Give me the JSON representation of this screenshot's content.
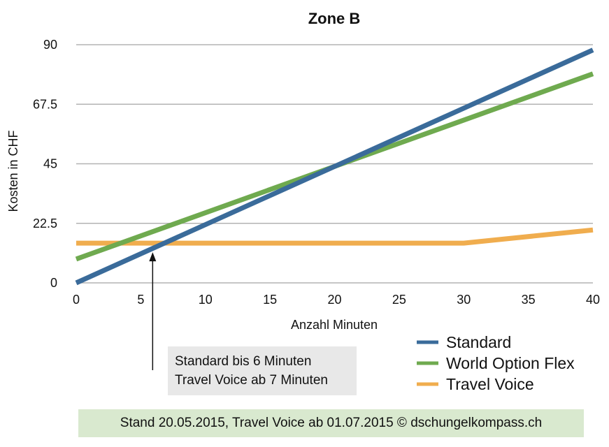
{
  "chart_data": {
    "type": "line",
    "title": "Zone B",
    "xlabel": "Anzahl Minuten",
    "ylabel": "Kosten in CHF",
    "xlim": [
      0,
      40
    ],
    "ylim": [
      0,
      90
    ],
    "x_ticks": [
      "0",
      "5",
      "10",
      "15",
      "20",
      "25",
      "30",
      "35",
      "40"
    ],
    "y_ticks": [
      "0",
      "22.5",
      "45",
      "67.5",
      "90"
    ],
    "grid": "horizontal",
    "legend_position": "bottom-right",
    "series": [
      {
        "name": "Standard",
        "color": "#3a6b9a",
        "x": [
          0,
          40
        ],
        "y": [
          0,
          88
        ]
      },
      {
        "name": "World Option Flex",
        "color": "#6faa4f",
        "x": [
          0,
          40
        ],
        "y": [
          9,
          79
        ]
      },
      {
        "name": "Travel Voice",
        "color": "#f0ad4e",
        "x": [
          0,
          30,
          40
        ],
        "y": [
          15,
          15,
          20
        ]
      }
    ],
    "annotation": {
      "x": 7,
      "y": 15,
      "lines": [
        "Standard bis 6 Minuten",
        "Travel Voice ab 7 Minuten"
      ]
    }
  },
  "footer": "Stand 20.05.2015, Travel Voice ab 01.07.2015 © dschungelkompass.ch"
}
